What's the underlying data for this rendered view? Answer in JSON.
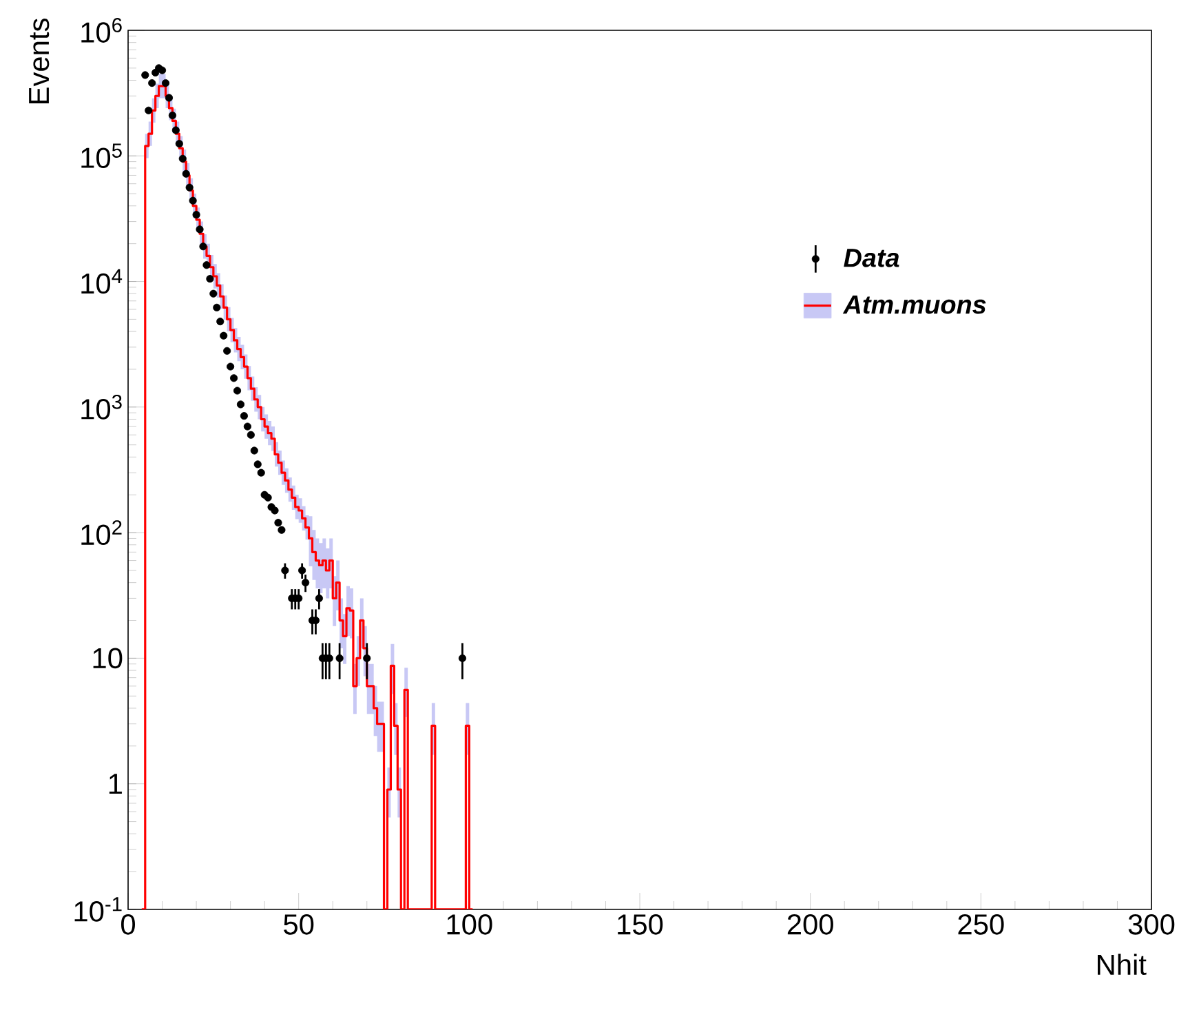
{
  "chart_data": {
    "type": "step",
    "xlabel": "Nhit",
    "ylabel": "Events",
    "log": "y",
    "xlim": [
      0,
      300
    ],
    "ylim": [
      0.1,
      1000000
    ],
    "xticks": [
      0,
      50,
      100,
      150,
      200,
      250,
      300
    ],
    "yticks": [
      {
        "value": 0.1,
        "label": "10$^{-1}$"
      },
      1,
      10,
      {
        "value": 100,
        "label": "10$^{2}$"
      },
      {
        "value": 1000,
        "label": "10$^{3}$"
      },
      {
        "value": 10000,
        "label": "10$^{4}$"
      },
      {
        "value": 100000,
        "label": "10$^{5}$"
      },
      {
        "value": 1000000,
        "label": "10$^{6}$"
      }
    ],
    "legend": "top right",
    "grid": false,
    "series": [
      {
        "name": "Data",
        "type": "scatter",
        "color": "#000000",
        "marker": "circle",
        "x": [
          5,
          6,
          7,
          8,
          9,
          10,
          11,
          12,
          13,
          14,
          15,
          16,
          17,
          18,
          19,
          20,
          21,
          22,
          23,
          24,
          25,
          26,
          27,
          28,
          29,
          30,
          31,
          32,
          33,
          34,
          35,
          36,
          37,
          38,
          39,
          40,
          41,
          42,
          43,
          44,
          45,
          46,
          48,
          49,
          50,
          51,
          52,
          54,
          55,
          56,
          57,
          58,
          59,
          62,
          70,
          98
        ],
        "values": [
          440000,
          230000,
          380000,
          460000,
          500000,
          480000,
          380000,
          290000,
          210000,
          160000,
          125000,
          95000,
          72000,
          56000,
          44000,
          34000,
          26000,
          19000,
          13500,
          10500,
          8000,
          6200,
          4800,
          3700,
          2800,
          2100,
          1700,
          1350,
          1050,
          850,
          700,
          600,
          450,
          350,
          300,
          200,
          190,
          160,
          150,
          120,
          105,
          50,
          30,
          30,
          30,
          50,
          40,
          20,
          20,
          30,
          10,
          10,
          10,
          10,
          10,
          10
        ],
        "errors": [
          null,
          null,
          null,
          null,
          null,
          null,
          null,
          null,
          null,
          null,
          null,
          null,
          null,
          null,
          null,
          null,
          null,
          null,
          null,
          null,
          null,
          null,
          null,
          null,
          null,
          null,
          null,
          null,
          null,
          null,
          null,
          null,
          null,
          null,
          null,
          null,
          null,
          null,
          null,
          null,
          null,
          7,
          5.5,
          5.5,
          5.5,
          7,
          6.3,
          4.5,
          4.5,
          5.5,
          3.2,
          3.2,
          3.2,
          3.2,
          3.2,
          3.2
        ]
      },
      {
        "name": "Atm.muons",
        "color": "#ff0000",
        "marker": "none",
        "x": [
          4,
          5,
          6,
          7,
          8,
          9,
          10,
          11,
          12,
          13,
          14,
          15,
          16,
          17,
          18,
          19,
          20,
          21,
          22,
          23,
          24,
          25,
          26,
          27,
          28,
          29,
          30,
          31,
          32,
          33,
          34,
          35,
          36,
          37,
          38,
          39,
          40,
          41,
          42,
          43,
          44,
          45,
          46,
          47,
          48,
          49,
          50,
          51,
          52,
          53,
          54,
          55,
          56,
          57,
          58,
          59,
          60,
          61,
          62,
          63,
          64,
          65,
          66,
          67,
          68,
          69,
          70,
          71,
          72,
          73,
          74,
          75,
          76,
          77,
          78,
          79,
          80,
          81,
          82,
          83,
          84,
          85,
          86,
          87,
          88,
          89,
          90,
          91,
          92,
          93,
          94,
          95,
          96,
          97,
          98,
          99,
          100
        ],
        "values": [
          0.1,
          120000,
          150000,
          230000,
          300000,
          360000,
          360000,
          300000,
          240000,
          190000,
          150000,
          115000,
          90000,
          70000,
          53000,
          40000,
          31000,
          24000,
          19000,
          16000,
          13000,
          11000,
          9300,
          7600,
          6200,
          5000,
          4100,
          3400,
          2900,
          2500,
          2100,
          1700,
          1400,
          1150,
          1000,
          800,
          700,
          620,
          560,
          420,
          360,
          300,
          260,
          220,
          190,
          160,
          150,
          130,
          110,
          90,
          70,
          60,
          55,
          60,
          50,
          60,
          30,
          40,
          20,
          15,
          25,
          24,
          6,
          10,
          20,
          12,
          6,
          6,
          4,
          3,
          3,
          0.1,
          0.9,
          8.7,
          2.9,
          0.9,
          0.1,
          5.6,
          0.1,
          0.1,
          0.1,
          0.1,
          0.1,
          0.1,
          0.1,
          2.9,
          0.1,
          0.1,
          0.1,
          0.1,
          0.1,
          0.1,
          0.1,
          0.1,
          0.1,
          2.9,
          0.1
        ],
        "lower": [
          null,
          96000,
          120000,
          184000,
          240000,
          288000,
          288000,
          240000,
          192000,
          152000,
          120000,
          92000,
          72000,
          56000,
          42400,
          32000,
          24800,
          19200,
          15200,
          12800,
          10400,
          8800,
          7440,
          6080,
          4960,
          4000,
          3280,
          2720,
          2320,
          2000,
          1680,
          1360,
          1120,
          920,
          800,
          640,
          560,
          496,
          448,
          336,
          288,
          240,
          208,
          176,
          152,
          128,
          120,
          104,
          88,
          54,
          42,
          36,
          33,
          36,
          30,
          36,
          18,
          24,
          12,
          9,
          15,
          14.4,
          3.6,
          6,
          12,
          7.2,
          3.6,
          3.6,
          2.4,
          1.8,
          1.8,
          null,
          0.54,
          5.2,
          1.7,
          0.54,
          null,
          3.4,
          null,
          null,
          null,
          null,
          null,
          null,
          null,
          1.7,
          null,
          null,
          null,
          null,
          null,
          null,
          null,
          null,
          null,
          1.7,
          null
        ],
        "upper": [
          null,
          150000,
          187500,
          287500,
          375000,
          450000,
          450000,
          375000,
          300000,
          237500,
          187500,
          143750,
          112500,
          87500,
          66250,
          50000,
          38750,
          30000,
          23750,
          20000,
          16250,
          13750,
          11625,
          9500,
          7750,
          6250,
          5125,
          4250,
          3625,
          3125,
          2625,
          2125,
          1750,
          1437.5,
          1250,
          1000,
          875,
          775,
          700,
          525,
          450,
          375,
          325,
          275,
          237.5,
          200,
          187.5,
          162.5,
          137.5,
          135,
          105,
          90,
          82.5,
          90,
          75,
          90,
          45,
          60,
          30,
          22.5,
          37.5,
          36,
          9,
          15,
          30,
          18,
          9,
          9,
          6,
          4.5,
          4.5,
          null,
          1.35,
          13,
          4.4,
          1.35,
          null,
          8.4,
          null,
          null,
          null,
          null,
          null,
          null,
          null,
          4.4,
          null,
          null,
          null,
          null,
          null,
          null,
          null,
          null,
          null,
          4.4,
          null
        ]
      }
    ]
  }
}
